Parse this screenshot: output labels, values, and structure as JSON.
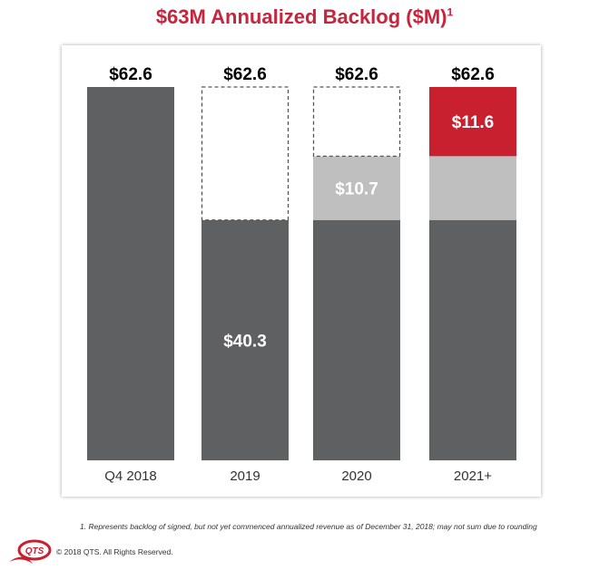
{
  "chart_data": {
    "type": "bar",
    "stacked": true,
    "title": "$63M Annualized Backlog ($M)",
    "title_footnote_marker": "1",
    "categories": [
      "Q4 2018",
      "2019",
      "2020",
      "2021+"
    ],
    "totals": [
      62.6,
      62.6,
      62.6,
      62.6
    ],
    "total_labels": [
      "$62.6",
      "$62.6",
      "$62.6",
      "$62.6"
    ],
    "segments": [
      {
        "category": "Q4 2018",
        "parts": [
          {
            "value": 62.6,
            "style": "dark",
            "label": ""
          }
        ]
      },
      {
        "category": "2019",
        "parts": [
          {
            "value": 40.3,
            "style": "dark",
            "label": "$40.3"
          },
          {
            "value": 22.3,
            "style": "dashed",
            "label": ""
          }
        ]
      },
      {
        "category": "2020",
        "parts": [
          {
            "value": 40.3,
            "style": "dark",
            "label": ""
          },
          {
            "value": 10.7,
            "style": "light",
            "label": "$10.7"
          },
          {
            "value": 11.6,
            "style": "dashed",
            "label": ""
          }
        ]
      },
      {
        "category": "2021+",
        "parts": [
          {
            "value": 40.3,
            "style": "dark",
            "label": ""
          },
          {
            "value": 10.7,
            "style": "light",
            "label": ""
          },
          {
            "value": 11.6,
            "style": "red",
            "label": "$11.6"
          }
        ]
      }
    ],
    "ylim": [
      0,
      62.6
    ],
    "grid": false,
    "colors": {
      "dark": "#5f6062",
      "light": "#bfbfbf",
      "red": "#c8202f",
      "dashed": "#ffffff",
      "title": "#c8243c"
    }
  },
  "footnote": "1. Represents backlog of signed, but not yet commenced annualized revenue as of December 31, 2018; may not sum due to rounding",
  "copyright": "© 2018 QTS. All Rights Reserved.",
  "logo_text": "QTS"
}
